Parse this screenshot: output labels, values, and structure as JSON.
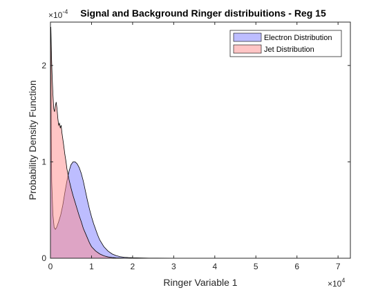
{
  "chart_data": {
    "type": "area",
    "title": "Signal and Background Ringer distribuitions - Reg 15",
    "xlabel": "Ringer Variable 1",
    "ylabel": "Probability Density Function",
    "x_exponent_label": "×10",
    "x_exponent": "4",
    "y_exponent_label": "×10",
    "y_exponent": "-4",
    "xlim": [
      0,
      73000
    ],
    "ylim": [
      0,
      0.000245
    ],
    "x_ticks": [
      0,
      10000,
      20000,
      30000,
      40000,
      50000,
      60000,
      70000
    ],
    "x_tick_labels": [
      "0",
      "1",
      "2",
      "3",
      "4",
      "5",
      "6",
      "7"
    ],
    "y_ticks": [
      0,
      0.0001,
      0.0002
    ],
    "y_tick_labels": [
      "0",
      "1",
      "2"
    ],
    "legend_position": "top-right",
    "series": [
      {
        "name": "Electron Distribution",
        "color": "#7b7bff",
        "x": [
          0,
          100,
          200,
          300,
          600,
          900,
          1200,
          1500,
          2000,
          2500,
          3000,
          3500,
          4000,
          4500,
          5000,
          5500,
          6000,
          6500,
          7000,
          7500,
          8000,
          8500,
          9000,
          9500,
          10000,
          10500,
          11000,
          11500,
          12000,
          13000,
          14000,
          15000,
          16000,
          17000,
          18000,
          19000,
          20000,
          22000,
          24000,
          26000,
          30000,
          35000,
          40000,
          73000
        ],
        "y": [
          0.000185,
          0.00024,
          0.00013,
          8e-05,
          4.5e-05,
          3.2e-05,
          3e-05,
          3.2e-05,
          3.8e-05,
          4.5e-05,
          5.5e-05,
          6.8e-05,
          8e-05,
          9e-05,
          9.7e-05,
          0.0001,
          0.0001,
          9.8e-05,
          9.4e-05,
          8.8e-05,
          8e-05,
          7e-05,
          6e-05,
          5.1e-05,
          4.3e-05,
          3.6e-05,
          3e-05,
          2.4e-05,
          1.9e-05,
          1.2e-05,
          7.5e-06,
          4.5e-06,
          2.7e-06,
          1.6e-06,
          1e-06,
          7e-07,
          5e-07,
          3e-07,
          2e-07,
          1.2e-07,
          5e-08,
          2e-08,
          1e-08,
          0
        ]
      },
      {
        "name": "Jet Distribution",
        "color": "#ff8c8c",
        "x": [
          0,
          100,
          250,
          400,
          600,
          800,
          1000,
          1200,
          1400,
          1600,
          1800,
          2000,
          2200,
          2400,
          2600,
          2800,
          3000,
          3200,
          3500,
          3800,
          4000,
          4500,
          5000,
          5500,
          6000,
          6500,
          7000,
          7500,
          8000,
          8500,
          9000,
          9500,
          10000,
          11000,
          12000,
          13000,
          14000,
          15000,
          16000,
          18000,
          20000,
          25000,
          73000
        ],
        "y": [
          0.000215,
          0.00024,
          0.00021,
          0.00019,
          0.00017,
          0.000155,
          0.000152,
          0.000158,
          0.000162,
          0.000155,
          0.000145,
          0.000138,
          0.00014,
          0.000135,
          0.000138,
          0.00013,
          0.000124,
          0.000118,
          0.000108,
          0.0001,
          9.3e-05,
          8.2e-05,
          7.3e-05,
          6.5e-05,
          5.8e-05,
          5.1e-05,
          4.4e-05,
          3.8e-05,
          3.1e-05,
          2.6e-05,
          2.1e-05,
          1.6e-05,
          1.2e-05,
          7.5e-06,
          4.5e-06,
          2.5e-06,
          1.4e-06,
          8e-07,
          4e-07,
          1.5e-07,
          6e-08,
          2e-08,
          0
        ]
      }
    ]
  }
}
